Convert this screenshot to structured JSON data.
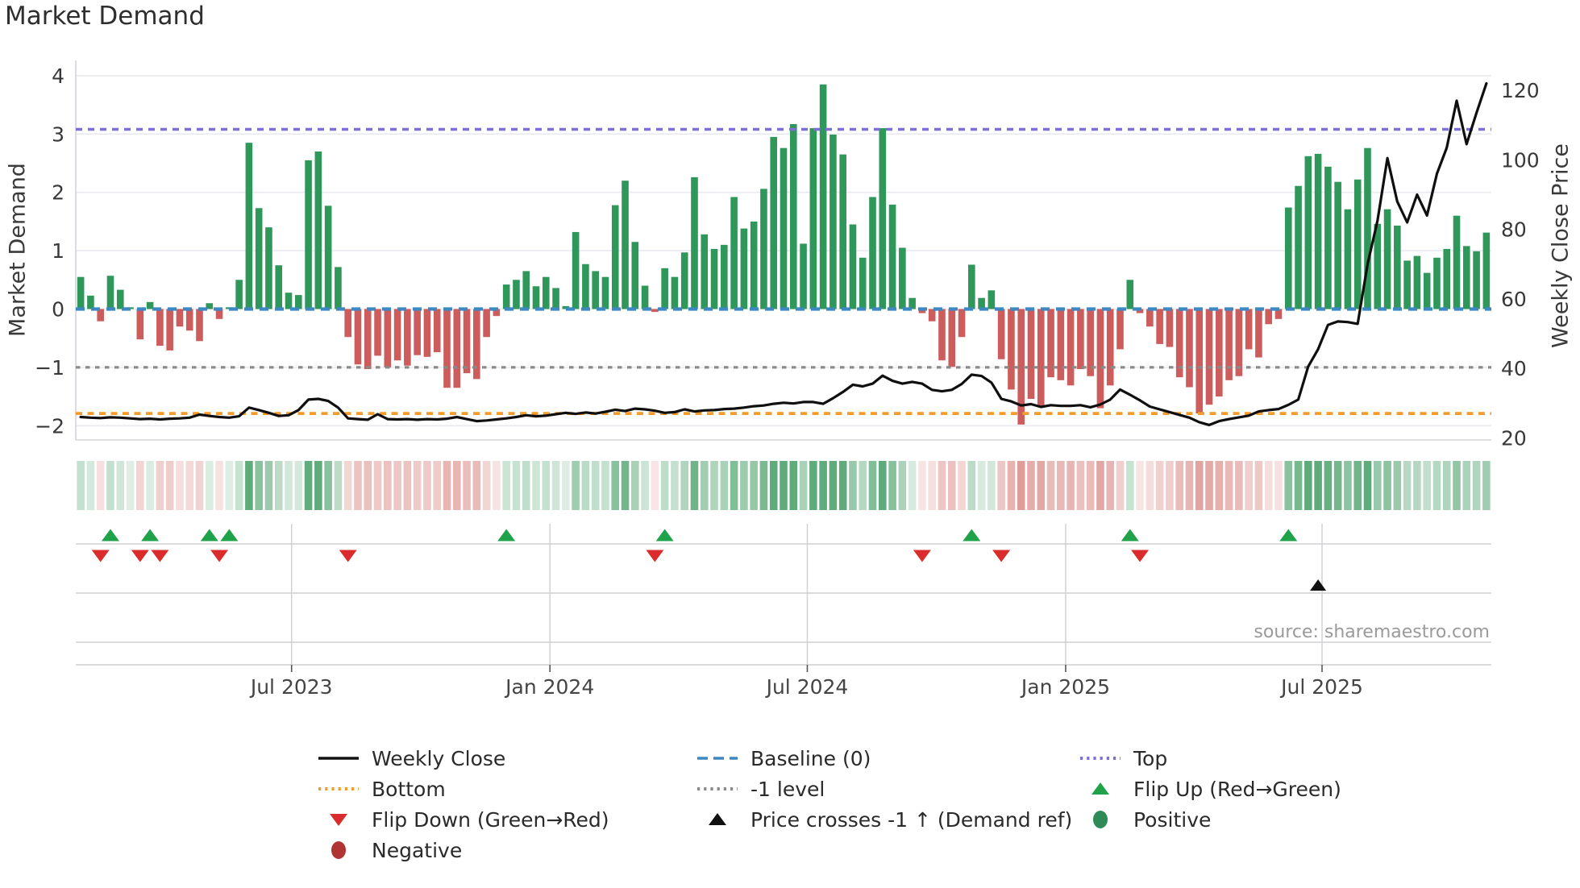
{
  "title": "Market Demand",
  "source": "source: sharemaestro.com",
  "axes": {
    "left": {
      "label": "Market Demand",
      "ticks": [
        "4",
        "3",
        "2",
        "1",
        "0",
        "−1",
        "−2"
      ],
      "tick_values": [
        4,
        3,
        2,
        1,
        0,
        -1,
        -2
      ]
    },
    "right": {
      "label": "Weekly Close Price",
      "ticks": [
        "120",
        "100",
        "80",
        "60",
        "40",
        "20"
      ],
      "tick_values": [
        120,
        100,
        80,
        60,
        40,
        20
      ]
    }
  },
  "chart_data": {
    "type": "bar+line combo with signal heatmap strip and event-marker rows",
    "x_unit": "weeks (~Feb 2023 to ~Oct 2025)",
    "x_ticks": [
      {
        "label": "Jul 2023",
        "week": 21.3
      },
      {
        "label": "Jan 2024",
        "week": 47.4
      },
      {
        "label": "Jul 2024",
        "week": 73.4
      },
      {
        "label": "Jan 2025",
        "week": 99.5
      },
      {
        "label": "Jul 2025",
        "week": 125.4
      }
    ],
    "ylim_left": [
      -2.26,
      4.26
    ],
    "ylim_right": [
      19.6,
      128.6
    ],
    "grid": true,
    "legend_position": "bottom",
    "levels": {
      "top": 3.08,
      "baseline": 0.0,
      "minus1": -1.0,
      "bottom": -1.79
    },
    "series": [
      {
        "name": "Market Demand",
        "type": "bar",
        "axis": "left",
        "values": [
          0.55,
          0.23,
          -0.21,
          0.57,
          0.33,
          0.03,
          -0.52,
          0.12,
          -0.63,
          -0.71,
          -0.3,
          -0.37,
          -0.55,
          0.1,
          -0.17,
          0.03,
          0.5,
          2.85,
          1.73,
          1.4,
          0.75,
          0.28,
          0.24,
          2.55,
          2.7,
          1.77,
          0.72,
          -0.48,
          -0.95,
          -1.03,
          -0.8,
          -1.0,
          -0.88,
          -0.97,
          -0.79,
          -0.82,
          -0.74,
          -1.35,
          -1.35,
          -1.1,
          -1.2,
          -0.48,
          -0.12,
          0.42,
          0.5,
          0.65,
          0.39,
          0.55,
          0.36,
          0.05,
          1.32,
          0.77,
          0.65,
          0.55,
          1.78,
          2.2,
          1.15,
          0.4,
          -0.05,
          0.7,
          0.55,
          0.97,
          2.26,
          1.28,
          1.03,
          1.1,
          1.92,
          1.38,
          1.5,
          2.06,
          2.95,
          2.76,
          3.17,
          1.12,
          3.1,
          3.85,
          2.99,
          2.65,
          1.45,
          0.88,
          1.92,
          3.1,
          1.79,
          1.05,
          0.19,
          -0.07,
          -0.21,
          -0.88,
          -0.99,
          -0.48,
          0.76,
          0.19,
          0.32,
          -0.86,
          -1.38,
          -1.98,
          -1.54,
          -1.68,
          -1.17,
          -1.22,
          -1.31,
          -1.03,
          -1.15,
          -1.7,
          -1.31,
          -0.69,
          0.5,
          -0.07,
          -0.3,
          -0.6,
          -0.65,
          -1.17,
          -1.34,
          -1.79,
          -1.64,
          -1.5,
          -1.22,
          -1.15,
          -0.69,
          -0.83,
          -0.26,
          -0.17,
          1.74,
          2.11,
          2.62,
          2.66,
          2.44,
          2.18,
          1.71,
          2.22,
          2.76,
          1.46,
          1.71,
          1.43,
          0.83,
          0.91,
          0.62,
          0.88,
          1.03,
          1.6,
          1.08,
          0.99,
          1.31
        ]
      },
      {
        "name": "Weekly Close",
        "type": "line",
        "axis": "right",
        "values": [
          26.0,
          25.8,
          25.7,
          25.9,
          25.8,
          25.6,
          25.4,
          25.5,
          25.3,
          25.5,
          25.6,
          25.8,
          26.7,
          26.3,
          26.0,
          25.8,
          26.2,
          28.7,
          28.0,
          27.2,
          26.3,
          26.5,
          28.0,
          31.0,
          31.2,
          30.6,
          28.7,
          25.6,
          25.4,
          25.2,
          26.8,
          25.4,
          25.3,
          25.4,
          25.2,
          25.4,
          25.3,
          25.5,
          26.0,
          25.4,
          24.8,
          25.0,
          25.3,
          25.6,
          26.0,
          26.5,
          26.2,
          26.4,
          26.8,
          27.2,
          26.9,
          27.3,
          27.0,
          27.5,
          28.1,
          27.7,
          28.4,
          28.2,
          27.8,
          27.2,
          27.4,
          28.2,
          27.6,
          27.9,
          28.0,
          28.3,
          28.4,
          28.7,
          29.1,
          29.3,
          29.8,
          30.1,
          29.9,
          30.3,
          30.3,
          29.8,
          31.4,
          33.2,
          35.3,
          34.8,
          35.6,
          37.9,
          36.4,
          35.6,
          36.1,
          35.6,
          33.8,
          33.4,
          33.8,
          35.5,
          38.2,
          37.8,
          35.9,
          31.2,
          30.5,
          29.3,
          29.7,
          28.9,
          29.4,
          29.2,
          29.2,
          29.4,
          28.8,
          29.6,
          31.0,
          33.9,
          32.4,
          30.8,
          29.0,
          28.2,
          27.4,
          26.6,
          25.8,
          24.5,
          23.7,
          24.8,
          25.4,
          25.9,
          26.4,
          27.6,
          28.0,
          28.3,
          29.5,
          31.0,
          40.5,
          45.5,
          52.5,
          53.5,
          53.3,
          52.8,
          70.0,
          82.5,
          100.5,
          88.0,
          82.0,
          90.0,
          84.0,
          96.0,
          103.5,
          117.0,
          104.5,
          113.5,
          122.0
        ]
      }
    ],
    "heatmap": {
      "description": "one cell per week, green intensity for positive demand, red intensity for negative demand",
      "source": "derived from Market Demand values"
    },
    "markers": {
      "flip_up_weeks": [
        3,
        7,
        13,
        15,
        43,
        59,
        90,
        106,
        122
      ],
      "flip_down_weeks": [
        2,
        6,
        8,
        14,
        27,
        58,
        85,
        93,
        107
      ],
      "price_cross_weeks": [
        125
      ]
    }
  },
  "legend": {
    "items": [
      {
        "label": "Weekly Close",
        "swatch": "line-solid",
        "color": "#111111",
        "col": 0,
        "row": 0
      },
      {
        "label": "Baseline (0)",
        "swatch": "line-dashed",
        "color": "#3d87c3",
        "col": 1,
        "row": 0
      },
      {
        "label": "Top",
        "swatch": "line-dotted",
        "color": "#7b6fd8",
        "col": 2,
        "row": 0
      },
      {
        "label": "Bottom",
        "swatch": "line-dotted",
        "color": "#f39c2d",
        "col": 0,
        "row": 1
      },
      {
        "label": "-1 level",
        "swatch": "line-dotted",
        "color": "#8a8a8a",
        "col": 1,
        "row": 1
      },
      {
        "label": "Flip Up (Red→Green)",
        "swatch": "triangle-up",
        "color": "#1fa24a",
        "col": 2,
        "row": 1
      },
      {
        "label": "Flip Down (Green→Red)",
        "swatch": "triangle-down",
        "color": "#da2c2c",
        "col": 0,
        "row": 2
      },
      {
        "label": "Price crosses -1 ↑ (Demand ref)",
        "swatch": "triangle-up",
        "color": "#111111",
        "col": 1,
        "row": 2
      },
      {
        "label": "Positive",
        "swatch": "circle",
        "color": "#2e8b57",
        "col": 2,
        "row": 2
      },
      {
        "label": "Negative",
        "swatch": "circle",
        "color": "#b03434",
        "col": 0,
        "row": 3
      }
    ]
  },
  "colors": {
    "bar_positive": "#2f9759",
    "bar_negative": "#cd5c5c",
    "price_line": "#0f0f0f",
    "baseline": "#3d87c3",
    "top_line": "#7b6fd8",
    "bottom_line": "#f39c2d",
    "minus1_line": "#8a8a8a",
    "flip_up": "#1fa24a",
    "flip_down": "#da2c2c",
    "price_cross": "#111111",
    "grid": "#e9e9f0",
    "spine": "#d4d4de",
    "panel_grid": "#cfcfd4",
    "heat_pos": "61,153,94",
    "heat_neg": "201,90,85",
    "tick_text": "#383838",
    "source_text": "#9a9a9a"
  }
}
